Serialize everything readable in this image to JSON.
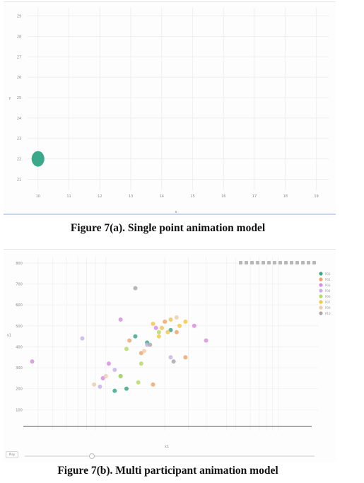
{
  "figures": [
    {
      "caption": "Figure 7(a). Single point animation model",
      "x_label": "x",
      "y_label": "y",
      "chart_data": {
        "type": "scatter",
        "title": "",
        "xlabel": "x",
        "ylabel": "y",
        "x_ticks": [
          "10",
          "11",
          "12",
          "13",
          "14",
          "15",
          "16",
          "17",
          "18",
          "19"
        ],
        "y_ticks": [
          "21",
          "22",
          "23",
          "24",
          "25",
          "26",
          "27",
          "28",
          "29"
        ],
        "xlim": [
          9.8,
          19.4
        ],
        "ylim": [
          20.6,
          29.4
        ],
        "series": [
          {
            "x": [
              10
            ],
            "y": [
              22
            ],
            "color": "#3aa88a"
          }
        ],
        "grid": true
      }
    },
    {
      "caption": "Figure 7(b). Multi participant animation model",
      "x_label": "x1",
      "y_label": "y1",
      "play_label": "Play",
      "chart_data": {
        "type": "scatter",
        "title": "",
        "xlabel": "x1",
        "ylabel": "y1",
        "y_ticks": [
          "100",
          "200",
          "300",
          "400",
          "500",
          "600",
          "700",
          "800"
        ],
        "ylim": [
          20,
          830
        ],
        "log_x": true,
        "legend_position": "top-right",
        "grid": true,
        "series": [
          {
            "name": "P01",
            "color": "#3aa88a",
            "x": [
              0.33,
              0.35,
              0.38,
              0.5,
              0.42,
              0.31
            ],
            "y": [
              260,
              200,
              450,
              480,
              420,
              190
            ]
          },
          {
            "name": "P02",
            "color": "#f2a66b",
            "x": [
              0.36,
              0.4,
              0.52,
              0.48,
              0.55,
              0.44
            ],
            "y": [
              430,
              370,
              470,
              520,
              350,
              220
            ]
          },
          {
            "name": "P03",
            "color": "#d98ee0",
            "x": [
              0.03,
              0.33,
              0.29,
              0.45,
              0.58,
              0.62,
              0.27
            ],
            "y": [
              330,
              530,
              320,
              490,
              500,
              430,
              250
            ]
          },
          {
            "name": "P05",
            "color": "#c9b3e6",
            "x": [
              0.2,
              0.31,
              0.26,
              0.42,
              0.5
            ],
            "y": [
              440,
              290,
              210,
              410,
              350
            ]
          },
          {
            "name": "P06",
            "color": "#b6dc6a",
            "x": [
              0.35,
              0.4,
              0.46,
              0.33,
              0.39
            ],
            "y": [
              390,
              320,
              470,
              260,
              230
            ]
          },
          {
            "name": "P07",
            "color": "#f5c84c",
            "x": [
              0.44,
              0.47,
              0.5,
              0.53,
              0.49,
              0.46,
              0.55
            ],
            "y": [
              510,
              490,
              530,
              500,
              470,
              450,
              520
            ]
          },
          {
            "name": "P09",
            "color": "#f0ccaa",
            "x": [
              0.24,
              0.28,
              0.41,
              0.52
            ],
            "y": [
              220,
              260,
              380,
              540
            ]
          },
          {
            "name": "P10",
            "color": "#a9a9a9",
            "x": [
              0.38,
              0.43,
              0.51
            ],
            "y": [
              680,
              410,
              330
            ]
          }
        ]
      }
    }
  ]
}
